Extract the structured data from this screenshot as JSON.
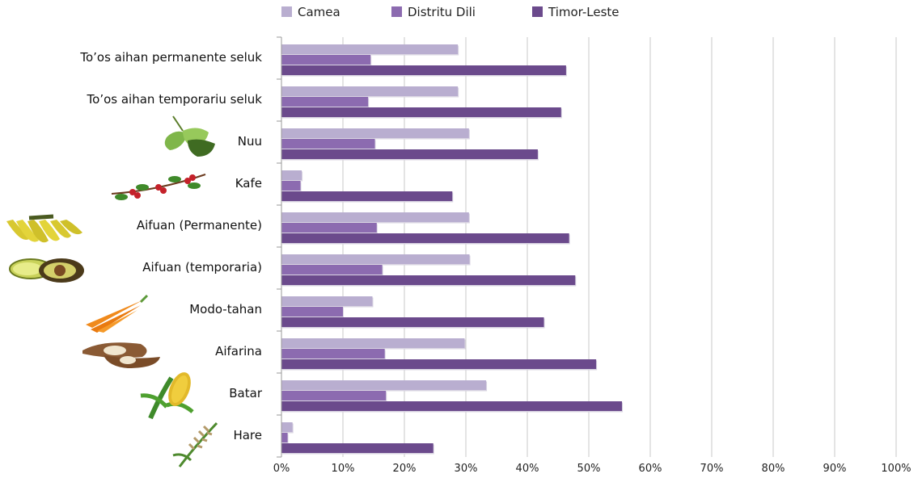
{
  "chart_data": {
    "type": "bar",
    "orientation": "horizontal",
    "categories": [
      "To’os aihan permanente seluk",
      "To’os aihan temporariu seluk",
      "Nuu",
      "Kafe",
      "Aifuan (Permanente)",
      "Aifuan (temporaria)",
      "Modo-tahan",
      "Aifarina",
      "Batar",
      "Hare"
    ],
    "category_icons": [
      null,
      null,
      "coconut-leaf-icon",
      "coffee-branch-icon",
      "banana-bunch-icon",
      "avocado-icon",
      "carrots-icon",
      "cassava-icon",
      "corn-icon",
      "rice-stalk-icon"
    ],
    "series": [
      {
        "name": "Camea",
        "color": "#b9aed0",
        "values": [
          28.7,
          28.7,
          30.5,
          3.3,
          30.5,
          30.6,
          14.8,
          29.8,
          33.3,
          1.8
        ]
      },
      {
        "name": "Distritu Dili",
        "color": "#8c6bb0",
        "values": [
          14.5,
          14.1,
          15.2,
          3.1,
          15.5,
          16.4,
          10.0,
          16.8,
          17.0,
          1.0
        ]
      },
      {
        "name": "Timor-Leste",
        "color": "#6b4a8c",
        "values": [
          46.3,
          45.5,
          41.7,
          27.8,
          46.8,
          47.8,
          42.7,
          51.2,
          55.4,
          24.7
        ]
      }
    ],
    "xlim": [
      0,
      100
    ],
    "x_ticks": [
      "0%",
      "10%",
      "20%",
      "30%",
      "40%",
      "50%",
      "60%",
      "70%",
      "80%",
      "90%",
      "100%"
    ],
    "grid": true,
    "legend_position": "top"
  }
}
